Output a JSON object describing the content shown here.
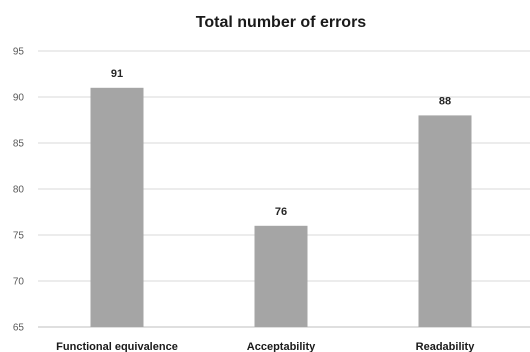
{
  "chart_data": {
    "type": "bar",
    "title": "Total number of errors",
    "categories": [
      "Functional equivalence",
      "Acceptability",
      "Readability"
    ],
    "values": [
      91,
      76,
      88
    ],
    "ylim": [
      65,
      95
    ],
    "yticks": [
      65,
      70,
      75,
      80,
      85,
      90,
      95
    ],
    "xlabel": "",
    "ylabel": "",
    "grid": true,
    "legend": "none",
    "colors": {
      "bar": "#a5a5a5",
      "grid": "#d9d9d9"
    }
  }
}
